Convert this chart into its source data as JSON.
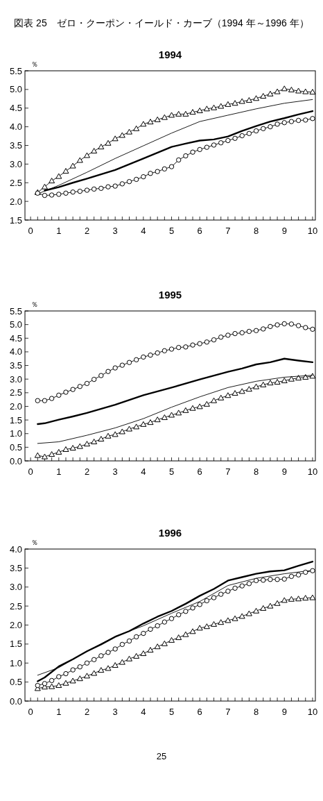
{
  "chart_data": [
    {
      "type": "line",
      "title": "1994",
      "ylabel": "％",
      "annotations": [
        "図表 25　ゼロ・クーポン・イールド・カーブ（1994 年～1996 年）"
      ],
      "xlim": [
        -0.2,
        10.1
      ],
      "xticks": [
        0,
        1,
        2,
        3,
        4,
        5,
        6,
        7,
        8,
        9,
        10
      ],
      "ylim": [
        1.5,
        5.5
      ],
      "yticks": [
        1.5,
        {
          "value": 2,
          "label": "2.0"
        },
        2.5,
        {
          "value": 3,
          "label": "3.0"
        },
        3.5,
        {
          "value": 4,
          "label": "4.0"
        },
        4.5,
        {
          "value": 5,
          "label": "5.0"
        },
        5.5
      ],
      "series": [
        {
          "color": "#000000",
          "marker": "triangle",
          "x": [
            0.25,
            0.5,
            0.75,
            1,
            1.25,
            1.5,
            1.75,
            2,
            2.25,
            2.5,
            2.75,
            3,
            3.25,
            3.5,
            3.75,
            4,
            4.25,
            4.5,
            4.75,
            5,
            5.25,
            5.5,
            5.75,
            6,
            6.25,
            6.5,
            6.75,
            7,
            7.25,
            7.5,
            7.75,
            8,
            8.25,
            8.5,
            8.75,
            9,
            9.25,
            9.5,
            9.75,
            10
          ],
          "values": [
            2.24,
            2.39,
            2.55,
            2.67,
            2.81,
            2.95,
            3.1,
            3.23,
            3.35,
            3.46,
            3.56,
            3.68,
            3.77,
            3.86,
            3.95,
            4.07,
            4.13,
            4.19,
            4.25,
            4.31,
            4.34,
            4.34,
            4.39,
            4.43,
            4.48,
            4.51,
            4.55,
            4.6,
            4.63,
            4.68,
            4.71,
            4.76,
            4.82,
            4.88,
            4.94,
            5.02,
            4.99,
            4.96,
            4.94,
            4.93
          ]
        },
        {
          "color": "#000000",
          "marker": "none",
          "x": [
            0.25,
            1,
            2,
            3,
            4,
            5,
            6,
            7,
            8,
            9,
            10
          ],
          "values": [
            2.2,
            2.43,
            2.78,
            3.15,
            3.49,
            3.83,
            4.14,
            4.31,
            4.48,
            4.63,
            4.73
          ]
        },
        {
          "color": "#000000",
          "marker": "none",
          "x": [
            0.5,
            1,
            1.5,
            2,
            3,
            4,
            5,
            5.5,
            6,
            6.5,
            7,
            7.5,
            8,
            8.5,
            9,
            9.5,
            10
          ],
          "values": [
            2.29,
            2.38,
            2.5,
            2.61,
            2.84,
            3.15,
            3.46,
            3.55,
            3.63,
            3.66,
            3.74,
            3.89,
            4.02,
            4.14,
            4.23,
            4.33,
            4.42
          ]
        },
        {
          "color": "#000000",
          "marker": "circle",
          "x": [
            0.25,
            0.5,
            0.75,
            1,
            1.25,
            1.5,
            1.75,
            2,
            2.25,
            2.5,
            2.75,
            3,
            3.25,
            3.5,
            3.75,
            4,
            4.25,
            4.5,
            4.75,
            5,
            5.25,
            5.5,
            5.75,
            6,
            6.25,
            6.5,
            6.75,
            7,
            7.25,
            7.5,
            7.75,
            8,
            8.25,
            8.5,
            8.75,
            9,
            9.25,
            9.5,
            9.75,
            10
          ],
          "values": [
            2.22,
            2.16,
            2.17,
            2.19,
            2.22,
            2.25,
            2.27,
            2.3,
            2.33,
            2.35,
            2.39,
            2.41,
            2.47,
            2.53,
            2.59,
            2.66,
            2.75,
            2.8,
            2.87,
            2.93,
            3.11,
            3.22,
            3.32,
            3.39,
            3.45,
            3.51,
            3.57,
            3.63,
            3.69,
            3.76,
            3.82,
            3.89,
            3.95,
            4.0,
            4.07,
            4.11,
            4.14,
            4.17,
            4.18,
            4.22
          ]
        }
      ]
    },
    {
      "type": "line",
      "title": "1995",
      "ylabel": "％",
      "xlim": [
        -0.2,
        10.1
      ],
      "xticks": [
        0,
        1,
        2,
        3,
        4,
        5,
        6,
        7,
        8,
        9,
        10
      ],
      "ylim": [
        0,
        5.5
      ],
      "yticks": [
        {
          "value": 0,
          "label": "0.0"
        },
        0.5,
        {
          "value": 1,
          "label": "1.0"
        },
        1.5,
        {
          "value": 2,
          "label": "2.0"
        },
        2.5,
        {
          "value": 3,
          "label": "3.0"
        },
        3.5,
        {
          "value": 4,
          "label": "4.0"
        },
        4.5,
        {
          "value": 5,
          "label": "5.0"
        },
        5.5
      ],
      "series": [
        {
          "color": "#000000",
          "marker": "triangle",
          "x": [
            0.25,
            0.5,
            0.75,
            1,
            1.25,
            1.5,
            1.75,
            2,
            2.25,
            2.5,
            2.75,
            3,
            3.25,
            3.5,
            3.75,
            4,
            4.25,
            4.5,
            4.75,
            5,
            5.25,
            5.5,
            5.75,
            6,
            6.25,
            6.5,
            6.75,
            7,
            7.25,
            7.5,
            7.75,
            8,
            8.25,
            8.5,
            8.75,
            9,
            9.25,
            9.5,
            9.75,
            10
          ],
          "values": [
            0.2,
            0.15,
            0.24,
            0.32,
            0.42,
            0.47,
            0.53,
            0.62,
            0.7,
            0.8,
            0.91,
            0.97,
            1.07,
            1.17,
            1.25,
            1.34,
            1.41,
            1.51,
            1.59,
            1.68,
            1.76,
            1.85,
            1.93,
            1.99,
            2.08,
            2.21,
            2.31,
            2.4,
            2.48,
            2.55,
            2.63,
            2.72,
            2.79,
            2.86,
            2.89,
            2.94,
            3.0,
            3.04,
            3.07,
            3.11
          ]
        },
        {
          "color": "#000000",
          "marker": "none",
          "x": [
            0.25,
            1,
            2,
            3,
            4,
            5,
            6,
            7,
            8,
            9,
            10
          ],
          "values": [
            0.64,
            0.7,
            0.94,
            1.21,
            1.55,
            1.97,
            2.35,
            2.69,
            2.92,
            3.07,
            3.14
          ]
        },
        {
          "color": "#000000",
          "marker": "none",
          "x": [
            0.25,
            0.5,
            1,
            1.5,
            2,
            3,
            4,
            5,
            6,
            7,
            7.5,
            8,
            8.5,
            9,
            9.5,
            10
          ],
          "values": [
            1.35,
            1.38,
            1.51,
            1.63,
            1.76,
            2.06,
            2.41,
            2.69,
            2.99,
            3.27,
            3.39,
            3.54,
            3.62,
            3.75,
            3.68,
            3.62
          ]
        },
        {
          "color": "#000000",
          "marker": "circle",
          "x": [
            0.25,
            0.5,
            0.75,
            1,
            1.25,
            1.5,
            1.75,
            2,
            2.25,
            2.5,
            2.75,
            3,
            3.25,
            3.5,
            3.75,
            4,
            4.25,
            4.5,
            4.75,
            5,
            5.25,
            5.5,
            5.75,
            6,
            6.25,
            6.5,
            6.75,
            7,
            7.25,
            7.5,
            7.75,
            8,
            8.25,
            8.5,
            8.75,
            9,
            9.25,
            9.5,
            9.75,
            10
          ],
          "values": [
            2.21,
            2.21,
            2.29,
            2.41,
            2.52,
            2.62,
            2.73,
            2.84,
            2.99,
            3.13,
            3.28,
            3.41,
            3.51,
            3.61,
            3.71,
            3.81,
            3.88,
            3.96,
            4.04,
            4.1,
            4.16,
            4.18,
            4.25,
            4.3,
            4.36,
            4.44,
            4.54,
            4.61,
            4.67,
            4.7,
            4.75,
            4.78,
            4.84,
            4.93,
            4.99,
            5.03,
            5.02,
            4.96,
            4.89,
            4.83
          ]
        }
      ]
    },
    {
      "type": "line",
      "title": "1996",
      "ylabel": "％",
      "annotations": [
        "25"
      ],
      "xlim": [
        -0.2,
        10.1
      ],
      "xticks": [
        0,
        1,
        2,
        3,
        4,
        5,
        6,
        7,
        8,
        9,
        10
      ],
      "ylim": [
        0,
        4
      ],
      "yticks": [
        {
          "value": 0,
          "label": "0.0"
        },
        0.5,
        {
          "value": 1,
          "label": "1.0"
        },
        1.5,
        {
          "value": 2,
          "label": "2.0"
        },
        2.5,
        {
          "value": 3,
          "label": "3.0"
        },
        3.5,
        {
          "value": 4,
          "label": "4.0"
        }
      ],
      "series": [
        {
          "color": "#000000",
          "marker": "triangle",
          "x": [
            0.25,
            0.5,
            0.75,
            1,
            1.25,
            1.5,
            1.75,
            2,
            2.25,
            2.5,
            2.75,
            3,
            3.25,
            3.5,
            3.75,
            4,
            4.25,
            4.5,
            4.75,
            5,
            5.25,
            5.5,
            5.75,
            6,
            6.25,
            6.5,
            6.75,
            7,
            7.25,
            7.5,
            7.75,
            8,
            8.25,
            8.5,
            8.75,
            9,
            9.25,
            9.5,
            9.75,
            10
          ],
          "values": [
            0.33,
            0.37,
            0.38,
            0.41,
            0.47,
            0.53,
            0.59,
            0.66,
            0.73,
            0.81,
            0.86,
            0.94,
            1.02,
            1.11,
            1.18,
            1.25,
            1.34,
            1.43,
            1.51,
            1.6,
            1.67,
            1.75,
            1.83,
            1.92,
            1.96,
            2.02,
            2.07,
            2.12,
            2.17,
            2.23,
            2.3,
            2.37,
            2.44,
            2.5,
            2.57,
            2.65,
            2.68,
            2.69,
            2.71,
            2.72
          ]
        },
        {
          "color": "#000000",
          "marker": "none",
          "x": [
            0.25,
            1,
            2,
            3,
            4,
            5,
            6,
            7,
            8,
            9,
            10
          ],
          "values": [
            0.68,
            0.88,
            1.31,
            1.7,
            1.98,
            2.31,
            2.62,
            3.04,
            3.23,
            3.35,
            3.44
          ]
        },
        {
          "color": "#000000",
          "marker": "none",
          "x": [
            0.25,
            0.5,
            1,
            1.5,
            2,
            2.5,
            3,
            3.5,
            4,
            4.5,
            5,
            5.5,
            6,
            6.5,
            7,
            7.5,
            8,
            8.5,
            9,
            9.5,
            10
          ],
          "values": [
            0.52,
            0.62,
            0.91,
            1.1,
            1.31,
            1.49,
            1.69,
            1.84,
            2.04,
            2.22,
            2.37,
            2.56,
            2.77,
            2.95,
            3.17,
            3.26,
            3.35,
            3.41,
            3.44,
            3.56,
            3.67
          ]
        },
        {
          "color": "#000000",
          "marker": "circle",
          "x": [
            0.25,
            0.5,
            0.75,
            1,
            1.25,
            1.5,
            1.75,
            2,
            2.25,
            2.5,
            2.75,
            3,
            3.25,
            3.5,
            3.75,
            4,
            4.25,
            4.5,
            4.75,
            5,
            5.25,
            5.5,
            5.75,
            6,
            6.25,
            6.5,
            6.75,
            7,
            7.25,
            7.5,
            7.75,
            8,
            8.25,
            8.5,
            8.75,
            9,
            9.25,
            9.5,
            9.75,
            10
          ],
          "values": [
            0.41,
            0.46,
            0.54,
            0.64,
            0.72,
            0.82,
            0.9,
            1.0,
            1.09,
            1.19,
            1.28,
            1.37,
            1.49,
            1.58,
            1.69,
            1.78,
            1.89,
            1.98,
            2.08,
            2.17,
            2.27,
            2.36,
            2.45,
            2.54,
            2.64,
            2.72,
            2.81,
            2.89,
            2.97,
            3.03,
            3.09,
            3.17,
            3.18,
            3.2,
            3.2,
            3.21,
            3.28,
            3.32,
            3.39,
            3.43
          ]
        }
      ]
    }
  ]
}
